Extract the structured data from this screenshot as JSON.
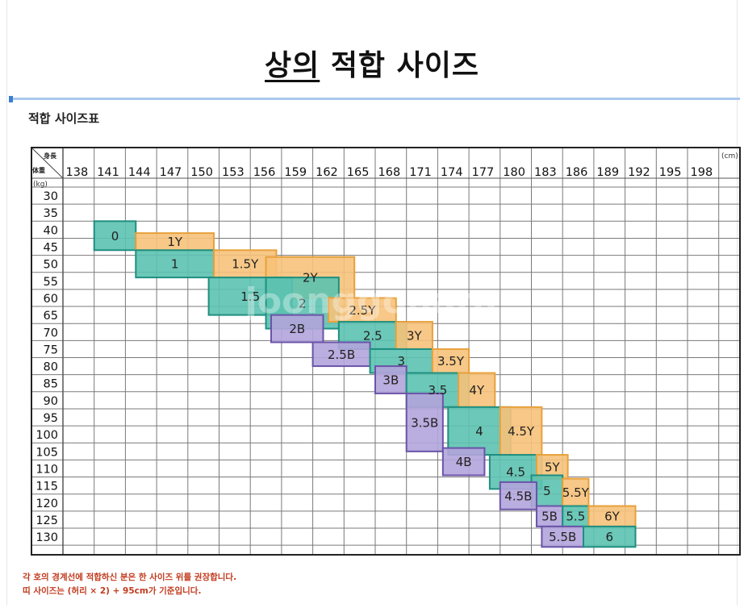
{
  "page": {
    "title_underlined": "상의",
    "title_rest": " 적합 사이즈",
    "table_title": "적합 사이즈표",
    "notes": [
      "각 호의 경계선에 적합하신 분은 한 사이즈 위를 권장합니다.",
      "띠 사이즈는 (허리 × 2) + 95cm가 기준입니다."
    ],
    "watermark": "joonggonara"
  },
  "chart_data": {
    "type": "table",
    "title": "적합 사이즈표",
    "corner_labels": {
      "height": "身長",
      "weight": "体重"
    },
    "x_unit": "(cm)",
    "y_unit": "(kg)",
    "x_ticks": [
      138,
      141,
      144,
      147,
      150,
      153,
      156,
      159,
      162,
      165,
      168,
      171,
      174,
      177,
      180,
      183,
      186,
      189,
      192,
      195,
      198
    ],
    "y_ticks": [
      30,
      35,
      40,
      45,
      50,
      55,
      60,
      65,
      70,
      75,
      80,
      85,
      90,
      95,
      100,
      105,
      110,
      115,
      120,
      125,
      130
    ],
    "grid": true,
    "colors": {
      "Y": "#f6c27a",
      "Y_border": "#e8a13c",
      "standard": "#5cc2b0",
      "standard_border": "#1f8f80",
      "B": "#b3a4db",
      "B_border": "#6a54a8"
    },
    "sizes": [
      {
        "label": "0",
        "group": "standard",
        "height": [
          141,
          145
        ],
        "weight": [
          37.5,
          46
        ]
      },
      {
        "label": "1Y",
        "group": "Y",
        "height": [
          145,
          152.5
        ],
        "weight": [
          41,
          46
        ]
      },
      {
        "label": "1",
        "group": "standard",
        "height": [
          145,
          152.5
        ],
        "weight": [
          46,
          54
        ]
      },
      {
        "label": "1.5Y",
        "group": "Y",
        "height": [
          152.5,
          158.5
        ],
        "weight": [
          46,
          54
        ]
      },
      {
        "label": "2Y",
        "group": "Y",
        "height": [
          157.5,
          166
        ],
        "weight": [
          48,
          60
        ]
      },
      {
        "label": "1.5",
        "group": "standard",
        "height": [
          152,
          160
        ],
        "weight": [
          54,
          65
        ]
      },
      {
        "label": "2",
        "group": "standard",
        "height": [
          157.5,
          164.5
        ],
        "weight": [
          54,
          69
        ]
      },
      {
        "label": "2.5Y",
        "group": "Y",
        "height": [
          163.5,
          170
        ],
        "weight": [
          60,
          67
        ]
      },
      {
        "label": "2B",
        "group": "B",
        "height": [
          158,
          163
        ],
        "weight": [
          65,
          73
        ]
      },
      {
        "label": "2.5",
        "group": "standard",
        "height": [
          164.5,
          171
        ],
        "weight": [
          67,
          75
        ]
      },
      {
        "label": "3Y",
        "group": "Y",
        "height": [
          170,
          173.5
        ],
        "weight": [
          67,
          75
        ]
      },
      {
        "label": "2.5B",
        "group": "B",
        "height": [
          162,
          167.5
        ],
        "weight": [
          73,
          80
        ]
      },
      {
        "label": "3",
        "group": "standard",
        "height": [
          167.5,
          173.5
        ],
        "weight": [
          75,
          82
        ]
      },
      {
        "label": "3.5Y",
        "group": "Y",
        "height": [
          173.5,
          177
        ],
        "weight": [
          75,
          82
        ]
      },
      {
        "label": "3B",
        "group": "B",
        "height": [
          168,
          171
        ],
        "weight": [
          80,
          88
        ]
      },
      {
        "label": "3.5",
        "group": "standard",
        "height": [
          171,
          177
        ],
        "weight": [
          82,
          92
        ]
      },
      {
        "label": "4Y",
        "group": "Y",
        "height": [
          176,
          179.5
        ],
        "weight": [
          82,
          92
        ]
      },
      {
        "label": "3.5B",
        "group": "B",
        "height": [
          171,
          174.5
        ],
        "weight": [
          88,
          105
        ]
      },
      {
        "label": "4",
        "group": "standard",
        "height": [
          175,
          181
        ],
        "weight": [
          92,
          106
        ]
      },
      {
        "label": "4.5Y",
        "group": "Y",
        "height": [
          180,
          184
        ],
        "weight": [
          92,
          106
        ]
      },
      {
        "label": "4B",
        "group": "B",
        "height": [
          174.5,
          178.5
        ],
        "weight": [
          104,
          112
        ]
      },
      {
        "label": "4.5",
        "group": "standard",
        "height": [
          179,
          184
        ],
        "weight": [
          106,
          116
        ]
      },
      {
        "label": "5Y",
        "group": "Y",
        "height": [
          183.5,
          186.5
        ],
        "weight": [
          106,
          113
        ]
      },
      {
        "label": "5",
        "group": "standard",
        "height": [
          183,
          186
        ],
        "weight": [
          112,
          121
        ]
      },
      {
        "label": "5.5Y",
        "group": "Y",
        "height": [
          186,
          188.5
        ],
        "weight": [
          113,
          121
        ]
      },
      {
        "label": "4.5B",
        "group": "B",
        "height": [
          180,
          183.5
        ],
        "weight": [
          114,
          122
        ]
      },
      {
        "label": "5B",
        "group": "B",
        "height": [
          183.5,
          186
        ],
        "weight": [
          121,
          127
        ]
      },
      {
        "label": "5.5",
        "group": "standard",
        "height": [
          186,
          188.5
        ],
        "weight": [
          121,
          127
        ]
      },
      {
        "label": "6Y",
        "group": "Y",
        "height": [
          188.5,
          193
        ],
        "weight": [
          121,
          127
        ]
      },
      {
        "label": "5.5B",
        "group": "B",
        "height": [
          184,
          188
        ],
        "weight": [
          127,
          133
        ]
      },
      {
        "label": "6",
        "group": "standard",
        "height": [
          188,
          193
        ],
        "weight": [
          127,
          133
        ]
      }
    ]
  }
}
